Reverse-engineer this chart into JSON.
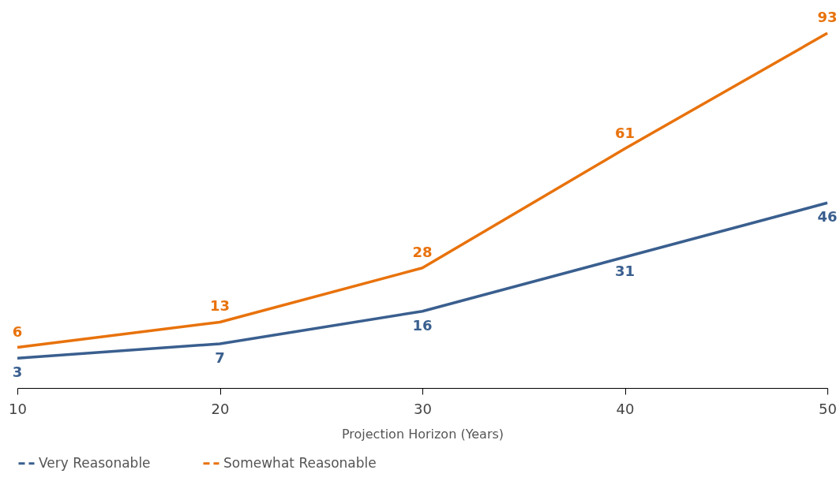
{
  "chart_data": {
    "type": "line",
    "xlabel": "Projection Horizon (Years)",
    "x": [
      10,
      20,
      30,
      40,
      50
    ],
    "xlim": [
      10,
      50
    ],
    "xticks": [
      10,
      20,
      30,
      40,
      50
    ],
    "series": [
      {
        "name": "Very Reasonable",
        "color": "#3a5f8f",
        "values": [
          3,
          7,
          16,
          31,
          46
        ]
      },
      {
        "name": "Somewhat Reasonable",
        "color": "#e8720c",
        "values": [
          6,
          13,
          28,
          61,
          93
        ]
      }
    ],
    "data_labels": true,
    "grid": false,
    "legend": "bottom",
    "marker": "none",
    "line_style": "solid"
  }
}
